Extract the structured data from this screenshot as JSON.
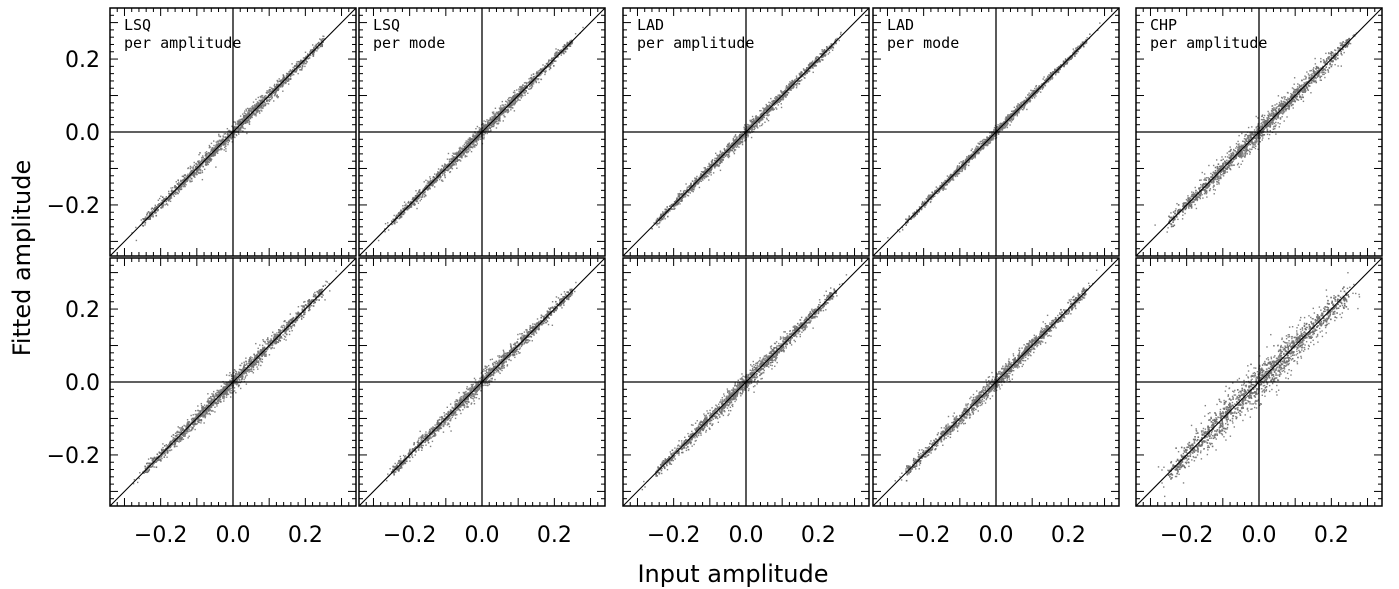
{
  "figure": {
    "xlabel": "Input amplitude",
    "ylabel": "Fitted amplitude"
  },
  "chart_data": [
    {
      "type": "scatter",
      "panel_label": [
        "LSQ",
        "per amplitude"
      ],
      "row": "top",
      "xlim": [
        -0.34,
        0.34
      ],
      "ylim": [
        -0.34,
        0.34
      ],
      "x_ticks": [
        -0.2,
        0.0,
        0.2
      ],
      "y_ticks": [
        -0.2,
        0.0,
        0.2
      ],
      "diagonal": "y=x",
      "zero_lines": true,
      "scatter_width": 0.012,
      "point_color": "#808080"
    },
    {
      "type": "scatter",
      "panel_label": [
        "LSQ",
        "per mode"
      ],
      "row": "top",
      "xlim": [
        -0.34,
        0.34
      ],
      "ylim": [
        -0.34,
        0.34
      ],
      "x_ticks": [
        -0.2,
        0.0,
        0.2
      ],
      "y_ticks": [
        -0.2,
        0.0,
        0.2
      ],
      "diagonal": "y=x",
      "zero_lines": true,
      "scatter_width": 0.011,
      "point_color": "#808080"
    },
    {
      "type": "scatter",
      "panel_label": [
        "LAD",
        "per amplitude"
      ],
      "row": "top",
      "xlim": [
        -0.34,
        0.34
      ],
      "ylim": [
        -0.34,
        0.34
      ],
      "x_ticks": [
        -0.2,
        0.0,
        0.2
      ],
      "y_ticks": [
        -0.2,
        0.0,
        0.2
      ],
      "diagonal": "y=x",
      "zero_lines": true,
      "scatter_width": 0.01,
      "point_color": "#808080"
    },
    {
      "type": "scatter",
      "panel_label": [
        "LAD",
        "per mode"
      ],
      "row": "top",
      "xlim": [
        -0.34,
        0.34
      ],
      "ylim": [
        -0.34,
        0.34
      ],
      "x_ticks": [
        -0.2,
        0.0,
        0.2
      ],
      "y_ticks": [
        -0.2,
        0.0,
        0.2
      ],
      "diagonal": "y=x",
      "zero_lines": true,
      "scatter_width": 0.007,
      "point_color": "#808080"
    },
    {
      "type": "scatter",
      "panel_label": [
        "CHP",
        "per amplitude"
      ],
      "row": "top",
      "xlim": [
        -0.34,
        0.34
      ],
      "ylim": [
        -0.34,
        0.34
      ],
      "x_ticks": [
        -0.2,
        0.0,
        0.2
      ],
      "y_ticks": [
        -0.2,
        0.0,
        0.2
      ],
      "diagonal": "y=x",
      "zero_lines": true,
      "scatter_width": 0.018,
      "point_color": "#808080"
    },
    {
      "type": "scatter",
      "panel_label": [],
      "row": "bottom",
      "xlim": [
        -0.34,
        0.34
      ],
      "ylim": [
        -0.34,
        0.34
      ],
      "x_ticks": [
        -0.2,
        0.0,
        0.2
      ],
      "y_ticks": [
        -0.2,
        0.0,
        0.2
      ],
      "diagonal": "y=x",
      "zero_lines": true,
      "scatter_width": 0.014,
      "point_color": "#808080"
    },
    {
      "type": "scatter",
      "panel_label": [],
      "row": "bottom",
      "xlim": [
        -0.34,
        0.34
      ],
      "ylim": [
        -0.34,
        0.34
      ],
      "x_ticks": [
        -0.2,
        0.0,
        0.2
      ],
      "y_ticks": [
        -0.2,
        0.0,
        0.2
      ],
      "diagonal": "y=x",
      "zero_lines": true,
      "scatter_width": 0.013,
      "point_color": "#808080"
    },
    {
      "type": "scatter",
      "panel_label": [],
      "row": "bottom",
      "xlim": [
        -0.34,
        0.34
      ],
      "ylim": [
        -0.34,
        0.34
      ],
      "x_ticks": [
        -0.2,
        0.0,
        0.2
      ],
      "y_ticks": [
        -0.2,
        0.0,
        0.2
      ],
      "diagonal": "y=x",
      "zero_lines": true,
      "scatter_width": 0.014,
      "point_color": "#808080"
    },
    {
      "type": "scatter",
      "panel_label": [],
      "row": "bottom",
      "xlim": [
        -0.34,
        0.34
      ],
      "ylim": [
        -0.34,
        0.34
      ],
      "x_ticks": [
        -0.2,
        0.0,
        0.2
      ],
      "y_ticks": [
        -0.2,
        0.0,
        0.2
      ],
      "diagonal": "y=x",
      "zero_lines": true,
      "scatter_width": 0.013,
      "point_color": "#808080"
    },
    {
      "type": "scatter",
      "panel_label": [],
      "row": "bottom",
      "xlim": [
        -0.34,
        0.34
      ],
      "ylim": [
        -0.34,
        0.34
      ],
      "x_ticks": [
        -0.2,
        0.0,
        0.2
      ],
      "y_ticks": [
        -0.2,
        0.0,
        0.2
      ],
      "diagonal": "y=x",
      "zero_lines": true,
      "scatter_width": 0.03,
      "point_color": "#808080"
    }
  ]
}
